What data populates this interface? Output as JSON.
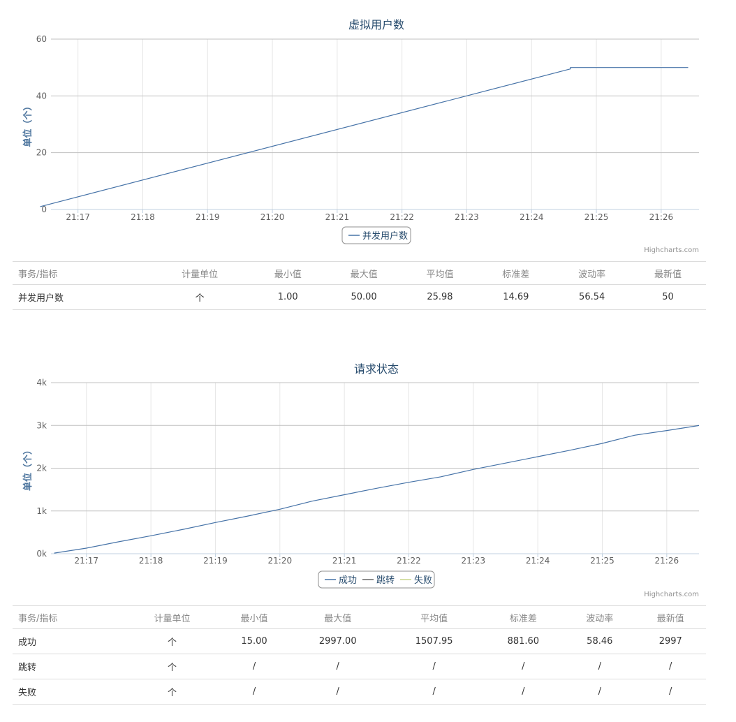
{
  "chart_data": [
    {
      "type": "line",
      "title": "虚拟用户数",
      "ylabel": "单位（个）",
      "xlabel": "",
      "x_ticks": [
        "21:17",
        "21:18",
        "21:19",
        "21:20",
        "21:21",
        "21:22",
        "21:23",
        "21:24",
        "21:25",
        "21:26"
      ],
      "y_ticks": [
        "0",
        "20",
        "40",
        "60"
      ],
      "ylim": [
        0,
        60
      ],
      "xlim": [
        "21:16:35",
        "21:26:35"
      ],
      "grid": true,
      "legend_position": "bottom-center",
      "series": [
        {
          "name": "并发用户数",
          "color": "#4572a7",
          "points": [
            [
              "21:16:25",
              1
            ],
            [
              "21:24:36",
              49.5
            ],
            [
              "21:24:36",
              50
            ],
            [
              "21:26:25",
              50
            ]
          ]
        }
      ]
    },
    {
      "type": "line",
      "title": "请求状态",
      "ylabel": "单位（个）",
      "xlabel": "",
      "x_ticks": [
        "21:17",
        "21:18",
        "21:19",
        "21:20",
        "21:21",
        "21:22",
        "21:23",
        "21:24",
        "21:25",
        "21:26"
      ],
      "y_ticks": [
        "0k",
        "1k",
        "2k",
        "3k",
        "4k"
      ],
      "ylim": [
        0,
        4000
      ],
      "xlim": [
        "21:16:27",
        "21:26:30"
      ],
      "grid": true,
      "legend_position": "bottom-center",
      "series": [
        {
          "name": "成功",
          "color": "#4572a7",
          "points": [
            [
              "21:16:30",
              15
            ],
            [
              "21:17:00",
              130
            ],
            [
              "21:17:30",
              280
            ],
            [
              "21:18:00",
              420
            ],
            [
              "21:18:30",
              570
            ],
            [
              "21:19:00",
              730
            ],
            [
              "21:19:30",
              880
            ],
            [
              "21:20:00",
              1040
            ],
            [
              "21:20:30",
              1230
            ],
            [
              "21:21:00",
              1380
            ],
            [
              "21:21:30",
              1530
            ],
            [
              "21:22:00",
              1670
            ],
            [
              "21:22:30",
              1800
            ],
            [
              "21:23:00",
              1970
            ],
            [
              "21:23:30",
              2120
            ],
            [
              "21:24:00",
              2270
            ],
            [
              "21:24:30",
              2420
            ],
            [
              "21:25:00",
              2580
            ],
            [
              "21:25:30",
              2770
            ],
            [
              "21:26:00",
              2880
            ],
            [
              "21:26:30",
              2997
            ]
          ]
        },
        {
          "name": "跳转",
          "color": "#666666",
          "points": []
        },
        {
          "name": "失败",
          "color": "#c8d58b",
          "points": []
        }
      ]
    }
  ],
  "credits": "Highcharts.com",
  "table1": {
    "headers": [
      "事务/指标",
      "计量单位",
      "最小值",
      "最大值",
      "平均值",
      "标准差",
      "波动率",
      "最新值"
    ],
    "rows": [
      [
        "并发用户数",
        "个",
        "1.00",
        "50.00",
        "25.98",
        "14.69",
        "56.54",
        "50"
      ]
    ]
  },
  "table2": {
    "headers": [
      "事务/指标",
      "计量单位",
      "最小值",
      "最大值",
      "平均值",
      "标准差",
      "波动率",
      "最新值"
    ],
    "rows": [
      [
        "成功",
        "个",
        "15.00",
        "2997.00",
        "1507.95",
        "881.60",
        "58.46",
        "2997"
      ],
      [
        "跳转",
        "个",
        "/",
        "/",
        "/",
        "/",
        "/",
        "/"
      ],
      [
        "失败",
        "个",
        "/",
        "/",
        "/",
        "/",
        "/",
        "/"
      ]
    ]
  }
}
